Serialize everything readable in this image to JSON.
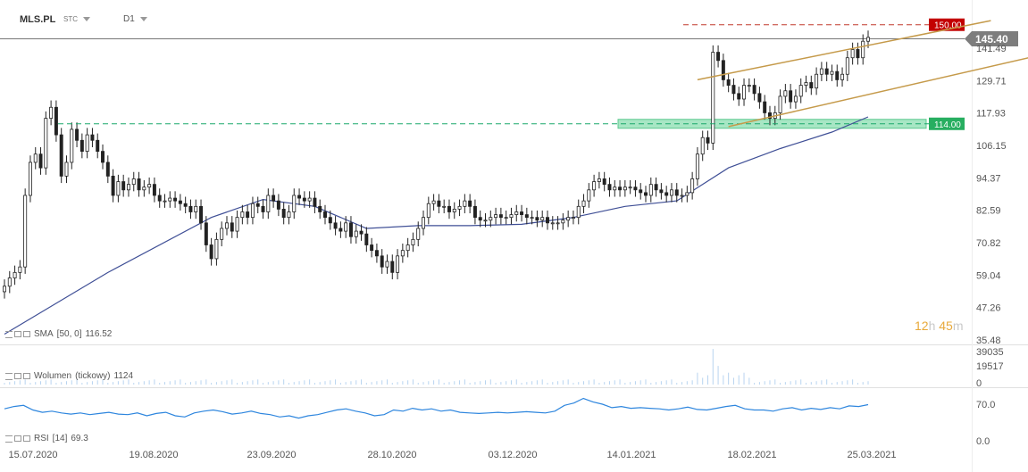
{
  "header": {
    "symbol": "MLS.PL",
    "price_type": "STC",
    "timeframe": "D1"
  },
  "timer": {
    "hours": "12",
    "hours_unit": "h",
    "minutes": "45",
    "minutes_unit": "m"
  },
  "indicators": {
    "sma": {
      "name": "SMA",
      "params": "[50,  0]",
      "value": "116.52"
    },
    "volume": {
      "name": "Wolumen",
      "params": "(tickowy)",
      "value": "1124"
    },
    "rsi": {
      "name": "RSI",
      "params": "[14]",
      "value": "69.3"
    }
  },
  "colors": {
    "candle_up": "#ffffff",
    "candle_down": "#222222",
    "sma_line": "#3f4f96",
    "rsi_line": "#2e86de",
    "volume_bars": "#b8d4f0",
    "resistance_line": "#c0392b",
    "support_line": "#1aa86b",
    "channel_line": "#c59a4a",
    "current_price_line": "#555555",
    "current_price_label_bg": "#7d7d7d",
    "resistance_label_bg": "#c30000",
    "support_label_bg": "#27ae60",
    "support_zone_fill": "#a7e6c4"
  },
  "chart_data": [
    {
      "type": "candlestick",
      "title": "",
      "x_ticks": [
        "15.07.2020",
        "19.08.2020",
        "23.09.2020",
        "28.10.2020",
        "03.12.2020",
        "14.01.2021",
        "18.02.2021",
        "25.03.2021"
      ],
      "y_ticks": [
        "35.48",
        "47.26",
        "59.04",
        "70.82",
        "82.59",
        "94.37",
        "106.15",
        "117.93",
        "129.71",
        "141.49"
      ],
      "ylim": [
        35.48,
        152.5
      ],
      "current_price": "145.40",
      "levels": [
        {
          "name": "resistance",
          "value": "150.00"
        },
        {
          "name": "support",
          "value": "114.00"
        }
      ],
      "channel": {
        "upper": [
          [
            134,
            130
          ],
          [
            189,
            151.5
          ]
        ],
        "lower": [
          [
            140,
            113
          ],
          [
            195,
            143
          ]
        ]
      },
      "close": [
        55,
        58,
        60,
        62,
        88,
        100,
        103,
        98,
        116,
        120,
        110,
        95,
        100,
        112,
        108,
        104,
        110,
        108,
        104,
        100,
        95,
        88,
        93,
        90,
        92,
        94,
        90,
        91,
        92,
        88,
        86,
        86,
        87,
        86,
        85,
        84,
        82,
        84,
        78,
        70,
        65,
        72,
        76,
        78,
        75,
        80,
        82,
        80,
        85,
        84,
        82,
        88,
        86,
        83,
        80,
        82,
        88,
        87,
        86,
        87,
        84,
        82,
        80,
        78,
        76,
        75,
        78,
        73,
        75,
        74,
        70,
        68,
        66,
        62,
        64,
        60,
        66,
        68,
        70,
        72,
        76,
        80,
        85,
        86,
        84,
        84,
        82,
        83,
        84,
        86,
        84,
        80,
        79,
        79,
        80,
        81,
        80,
        80,
        81,
        82,
        81,
        80,
        80,
        79,
        80,
        78,
        78,
        78,
        79,
        80,
        80,
        84,
        86,
        90,
        93,
        94,
        92,
        90,
        91,
        90,
        91,
        91,
        90,
        89,
        88,
        92,
        90,
        89,
        88,
        90,
        88,
        88,
        89,
        94,
        103,
        109,
        107,
        140,
        137,
        130,
        128,
        125,
        123,
        128,
        128,
        125,
        122,
        118,
        116,
        118,
        124,
        126,
        122,
        124,
        128,
        129,
        127,
        132,
        134,
        132,
        133,
        130,
        132,
        138,
        141,
        138,
        144,
        145.4
      ],
      "sma_50": [
        {
          "x": 0,
          "y": 37.6
        },
        {
          "x": 20,
          "y": 60
        },
        {
          "x": 40,
          "y": 80
        },
        {
          "x": 50,
          "y": 86.5
        },
        {
          "x": 60,
          "y": 84
        },
        {
          "x": 70,
          "y": 76
        },
        {
          "x": 80,
          "y": 77
        },
        {
          "x": 90,
          "y": 77
        },
        {
          "x": 100,
          "y": 77.5
        },
        {
          "x": 110,
          "y": 80
        },
        {
          "x": 120,
          "y": 84
        },
        {
          "x": 130,
          "y": 86
        },
        {
          "x": 140,
          "y": 98
        },
        {
          "x": 150,
          "y": 105
        },
        {
          "x": 160,
          "y": 111
        },
        {
          "x": 167,
          "y": 116.52
        }
      ],
      "volume": {
        "y_ticks": [
          "39035",
          "19517",
          "0"
        ],
        "ylim": [
          0,
          39035
        ]
      },
      "rsi": {
        "y_ticks": [
          "70.0",
          "0.0"
        ],
        "values": [
          62,
          66,
          68,
          60,
          56,
          58,
          55,
          53,
          55,
          52,
          54,
          56,
          53,
          52,
          55,
          50,
          54,
          56,
          50,
          48,
          55,
          58,
          60,
          57,
          53,
          55,
          58,
          54,
          52,
          48,
          50,
          46,
          50,
          52,
          56,
          60,
          62,
          58,
          55,
          50,
          52,
          60,
          58,
          63,
          60,
          62,
          58,
          60,
          56,
          55,
          54,
          55,
          56,
          55,
          56,
          57,
          56,
          55,
          58,
          68,
          72,
          80,
          74,
          70,
          64,
          66,
          63,
          64,
          63,
          62,
          60,
          62,
          65,
          61,
          60,
          63,
          66,
          68,
          62,
          60,
          60,
          58,
          62,
          64,
          60,
          63,
          61,
          64,
          62,
          67,
          66,
          69.3
        ]
      }
    }
  ]
}
